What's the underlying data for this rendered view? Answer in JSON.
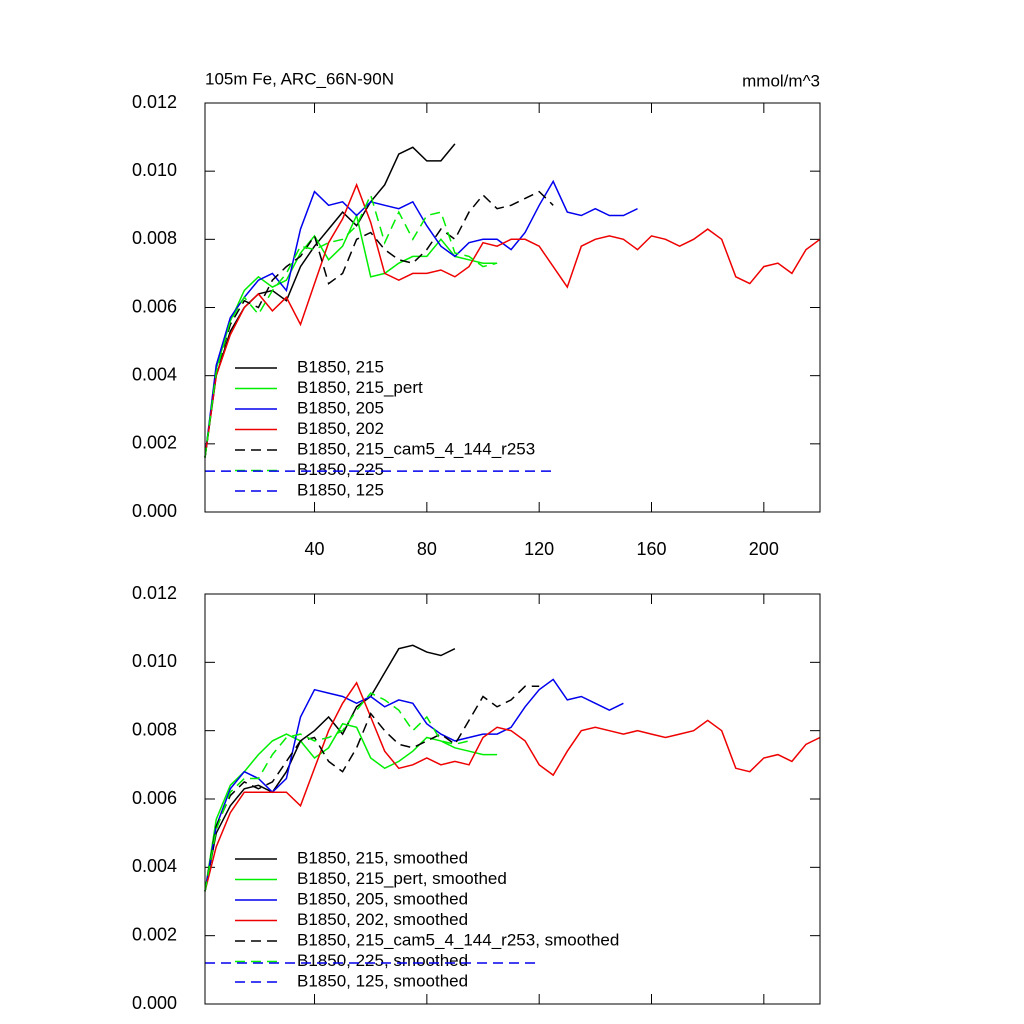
{
  "chart_data": [
    {
      "type": "line",
      "title": "105m Fe, ARC_66N-90N",
      "units": "mmol/m^3",
      "x": [
        1,
        5,
        10,
        15,
        20,
        25,
        30,
        35,
        40,
        45,
        50,
        55,
        60,
        65,
        70,
        75,
        80,
        85,
        90,
        95,
        100,
        105,
        110,
        115,
        120,
        125,
        130,
        135,
        140,
        145,
        150,
        155,
        160,
        165,
        170,
        175,
        180,
        185,
        190,
        195,
        200,
        205,
        210,
        215,
        220
      ],
      "xlim": [
        1,
        220
      ],
      "xticks": [
        40,
        80,
        120,
        160,
        200
      ],
      "x_tick_labels": true,
      "ylim": [
        0,
        0.012
      ],
      "yticks": [
        {
          "value": 0,
          "label": "0.000"
        },
        {
          "value": 0.002,
          "label": "0.002"
        },
        {
          "value": 0.004,
          "label": "0.004"
        },
        {
          "value": 0.006,
          "label": "0.006"
        },
        {
          "value": 0.008,
          "label": "0.008"
        },
        {
          "value": 0.01,
          "label": "0.010"
        },
        {
          "value": 0.012,
          "label": "0.012"
        }
      ],
      "series": [
        {
          "name": "B1850, 215",
          "color": "#000000",
          "dashed": false,
          "values": [
            0.0016,
            0.004,
            0.0053,
            0.006,
            0.0064,
            0.0065,
            0.0062,
            0.0072,
            0.0078,
            0.0083,
            0.0088,
            0.0084,
            0.0091,
            0.0096,
            0.0105,
            0.0107,
            0.0103,
            0.0103,
            0.0108,
            null,
            null,
            null,
            null,
            null,
            null,
            null,
            null,
            null,
            null,
            null,
            null,
            null,
            null,
            null,
            null,
            null,
            null,
            null,
            null,
            null,
            null,
            null,
            null,
            null,
            null
          ]
        },
        {
          "name": "B1850, 215_pert",
          "color": "#00ee00",
          "dashed": false,
          "values": [
            0.0016,
            0.0042,
            0.0056,
            0.0065,
            0.0069,
            0.0066,
            0.0068,
            0.0076,
            0.0081,
            0.0074,
            0.0078,
            0.0087,
            0.0069,
            0.007,
            0.0073,
            0.0075,
            0.0075,
            0.008,
            0.0075,
            0.0074,
            0.0073,
            0.0073,
            null,
            null,
            null,
            null,
            null,
            null,
            null,
            null,
            null,
            null,
            null,
            null,
            null,
            null,
            null,
            null,
            null,
            null,
            null,
            null,
            null,
            null,
            null
          ]
        },
        {
          "name": "B1850, 205",
          "color": "#0000ee",
          "dashed": false,
          "values": [
            0.0016,
            0.0043,
            0.0057,
            0.0063,
            0.0068,
            0.007,
            0.0065,
            0.0083,
            0.0094,
            0.009,
            0.0091,
            0.0087,
            0.0091,
            0.009,
            0.0089,
            0.0091,
            0.0084,
            0.0078,
            0.0075,
            0.0079,
            0.008,
            0.008,
            0.0077,
            0.0082,
            0.009,
            0.0097,
            0.0088,
            0.0087,
            0.0089,
            0.0087,
            0.0087,
            0.0089,
            null,
            null,
            null,
            null,
            null,
            null,
            null,
            null,
            null,
            null,
            null,
            null,
            null
          ]
        },
        {
          "name": "B1850, 202",
          "color": "#ee0000",
          "dashed": false,
          "values": [
            0.0016,
            0.004,
            0.0052,
            0.006,
            0.0064,
            0.0059,
            0.0063,
            0.0055,
            0.0067,
            0.0079,
            0.0086,
            0.0096,
            0.0085,
            0.007,
            0.0068,
            0.007,
            0.007,
            0.0071,
            0.0069,
            0.0072,
            0.0079,
            0.0078,
            0.008,
            0.008,
            0.0078,
            0.0072,
            0.0066,
            0.0078,
            0.008,
            0.0081,
            0.008,
            0.0077,
            0.0081,
            0.008,
            0.0078,
            0.008,
            0.0083,
            0.008,
            0.0069,
            0.0067,
            0.0072,
            0.0073,
            0.007,
            0.0077,
            0.008
          ]
        },
        {
          "name": "B1850, 215_cam5_4_144_r253",
          "color": "#000000",
          "dashed": true,
          "values": [
            0.0016,
            0.0041,
            0.0055,
            0.0062,
            0.006,
            0.0068,
            0.0072,
            0.0075,
            0.0081,
            0.0067,
            0.007,
            0.008,
            0.0082,
            0.0077,
            0.0074,
            0.0073,
            0.0077,
            0.0083,
            0.008,
            0.0088,
            0.0093,
            0.0089,
            0.009,
            0.0092,
            0.0094,
            0.009,
            null,
            null,
            null,
            null,
            null,
            null,
            null,
            null,
            null,
            null,
            null,
            null,
            null,
            null,
            null,
            null,
            null,
            null,
            null
          ]
        },
        {
          "name": "B1850, 225",
          "color": "#00ee00",
          "dashed": true,
          "values": [
            0.0016,
            0.0041,
            0.0056,
            0.0063,
            0.0058,
            0.0065,
            0.007,
            0.0078,
            0.0077,
            0.0079,
            0.008,
            0.0084,
            0.0093,
            0.0079,
            0.0088,
            0.008,
            0.0087,
            0.0088,
            0.0076,
            0.0075,
            0.0072,
            0.0073,
            null,
            null,
            null,
            null,
            null,
            null,
            null,
            null,
            null,
            null,
            null,
            null,
            null,
            null,
            null,
            null,
            null,
            null,
            null,
            null,
            null,
            null,
            null
          ]
        },
        {
          "name": "B1850, 125",
          "color": "#0000ee",
          "dashed": true,
          "values": [
            0.0012,
            0.0012,
            0.0012,
            0.0012,
            0.0012,
            0.0012,
            0.0012,
            0.0012,
            0.0012,
            0.0012,
            0.0012,
            0.0012,
            0.0012,
            0.0012,
            0.0012,
            0.0012,
            0.0012,
            0.0012,
            0.0012,
            0.0012,
            0.0012,
            0.0012,
            0.0012,
            0.0012,
            0.0012,
            0.0012,
            null,
            null,
            null,
            null,
            null,
            null,
            null,
            null,
            null,
            null,
            null,
            null,
            null,
            null,
            null,
            null,
            null,
            null,
            null
          ]
        }
      ]
    },
    {
      "type": "line",
      "x": [
        1,
        5,
        10,
        15,
        20,
        25,
        30,
        35,
        40,
        45,
        50,
        55,
        60,
        65,
        70,
        75,
        80,
        85,
        90,
        95,
        100,
        105,
        110,
        115,
        120,
        125,
        130,
        135,
        140,
        145,
        150,
        155,
        160,
        165,
        170,
        175,
        180,
        185,
        190,
        195,
        200,
        205,
        210,
        215,
        220
      ],
      "xlim": [
        1,
        220
      ],
      "xticks": [
        40,
        80,
        120,
        160,
        200
      ],
      "x_tick_labels": false,
      "ylim": [
        0,
        0.012
      ],
      "yticks": [
        {
          "value": 0,
          "label": "0.000"
        },
        {
          "value": 0.002,
          "label": "0.002"
        },
        {
          "value": 0.004,
          "label": "0.004"
        },
        {
          "value": 0.006,
          "label": "0.006"
        },
        {
          "value": 0.008,
          "label": "0.008"
        },
        {
          "value": 0.01,
          "label": "0.010"
        },
        {
          "value": 0.012,
          "label": "0.012"
        }
      ],
      "series": [
        {
          "name": "B1850, 215, smoothed",
          "color": "#000000",
          "dashed": false,
          "values": [
            0.0033,
            0.005,
            0.0058,
            0.0063,
            0.0064,
            0.0062,
            0.0068,
            0.0077,
            0.008,
            0.0084,
            0.0079,
            0.0087,
            0.009,
            0.0097,
            0.0104,
            0.0105,
            0.0103,
            0.0102,
            0.0104,
            null,
            null,
            null,
            null,
            null,
            null,
            null,
            null,
            null,
            null,
            null,
            null,
            null,
            null,
            null,
            null,
            null,
            null,
            null,
            null,
            null,
            null,
            null,
            null,
            null,
            null
          ]
        },
        {
          "name": "B1850, 215_pert, smoothed",
          "color": "#00ee00",
          "dashed": false,
          "values": [
            0.0033,
            0.0054,
            0.0064,
            0.0068,
            0.0073,
            0.0077,
            0.0079,
            0.0077,
            0.0072,
            0.0075,
            0.0082,
            0.0081,
            0.0072,
            0.0069,
            0.0071,
            0.0074,
            0.0078,
            0.0077,
            0.0075,
            0.0074,
            0.0073,
            0.0073,
            null,
            null,
            null,
            null,
            null,
            null,
            null,
            null,
            null,
            null,
            null,
            null,
            null,
            null,
            null,
            null,
            null,
            null,
            null,
            null,
            null,
            null,
            null
          ]
        },
        {
          "name": "B1850, 205, smoothed",
          "color": "#0000ee",
          "dashed": false,
          "values": [
            0.0033,
            0.0052,
            0.0063,
            0.0068,
            0.0066,
            0.0062,
            0.0066,
            0.0084,
            0.0092,
            0.0091,
            0.009,
            0.0088,
            0.009,
            0.0087,
            0.0089,
            0.0088,
            0.0082,
            0.0079,
            0.0077,
            0.0078,
            0.0079,
            0.0079,
            0.0081,
            0.0087,
            0.0092,
            0.0095,
            0.0089,
            0.009,
            0.0088,
            0.0086,
            0.0088,
            null,
            null,
            null,
            null,
            null,
            null,
            null,
            null,
            null,
            null,
            null,
            null,
            null,
            null
          ]
        },
        {
          "name": "B1850, 202, smoothed",
          "color": "#ee0000",
          "dashed": false,
          "values": [
            0.0033,
            0.0046,
            0.0056,
            0.0062,
            0.0062,
            0.0062,
            0.0062,
            0.0058,
            0.0069,
            0.008,
            0.0088,
            0.0094,
            0.0084,
            0.0074,
            0.0069,
            0.007,
            0.0072,
            0.007,
            0.0071,
            0.007,
            0.0078,
            0.0081,
            0.008,
            0.0077,
            0.007,
            0.0067,
            0.0074,
            0.008,
            0.0081,
            0.008,
            0.0079,
            0.008,
            0.0079,
            0.0078,
            0.0079,
            0.008,
            0.0083,
            0.008,
            0.0069,
            0.0068,
            0.0072,
            0.0073,
            0.0071,
            0.0076,
            0.0078
          ]
        },
        {
          "name": "B1850, 215_cam5_4_144_r253, smoothed",
          "color": "#000000",
          "dashed": true,
          "values": [
            0.0033,
            0.0052,
            0.0061,
            0.0065,
            0.0063,
            0.0065,
            0.0071,
            0.0077,
            0.0078,
            0.0071,
            0.0068,
            0.0075,
            0.0085,
            0.008,
            0.0076,
            0.0075,
            0.0077,
            0.0079,
            0.0076,
            0.0083,
            0.009,
            0.0087,
            0.0089,
            0.0093,
            0.0093,
            null,
            null,
            null,
            null,
            null,
            null,
            null,
            null,
            null,
            null,
            null,
            null,
            null,
            null,
            null,
            null,
            null,
            null,
            null,
            null
          ]
        },
        {
          "name": "B1850, 225, smoothed",
          "color": "#00ee00",
          "dashed": true,
          "values": [
            0.0033,
            0.0051,
            0.0062,
            0.0066,
            0.0066,
            0.0073,
            0.0078,
            0.0079,
            0.0077,
            0.0078,
            0.008,
            0.0086,
            0.0091,
            0.0089,
            0.0086,
            0.008,
            0.0084,
            0.0077,
            0.0076,
            0.0077,
            null,
            null,
            null,
            null,
            null,
            null,
            null,
            null,
            null,
            null,
            null,
            null,
            null,
            null,
            null,
            null,
            null,
            null,
            null,
            null,
            null,
            null,
            null,
            null,
            null
          ]
        },
        {
          "name": "B1850, 125, smoothed",
          "color": "#0000ee",
          "dashed": true,
          "values": [
            0.0012,
            0.0012,
            0.0012,
            0.0012,
            0.0012,
            0.0012,
            0.0012,
            0.0012,
            0.0012,
            0.0012,
            0.0012,
            0.0012,
            0.0012,
            0.0012,
            0.0012,
            0.0012,
            0.0012,
            0.0012,
            0.0012,
            0.0012,
            0.0012,
            0.0012,
            0.0012,
            0.0012,
            0.0012,
            null,
            null,
            null,
            null,
            null,
            null,
            null,
            null,
            null,
            null,
            null,
            null,
            null,
            null,
            null,
            null,
            null,
            null,
            null,
            null
          ]
        }
      ]
    }
  ]
}
